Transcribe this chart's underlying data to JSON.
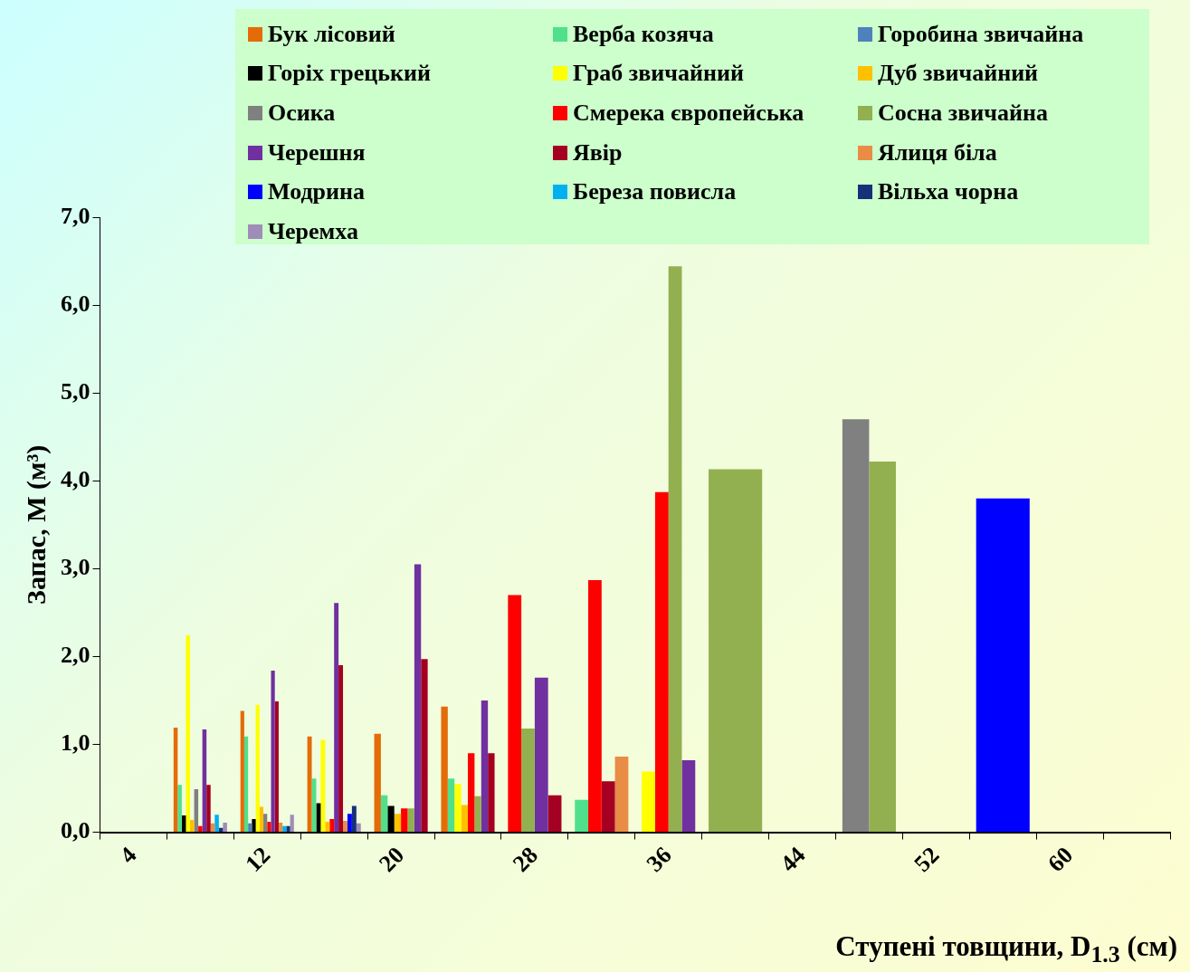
{
  "chart_data": {
    "type": "bar",
    "xlabel": "Ступені товщини, D$_{1.3}$ (см)",
    "ylabel": "Запас, М (м³)",
    "categories": [
      "4",
      null,
      "12",
      null,
      "20",
      null,
      "28",
      null,
      "36",
      null,
      "44",
      null,
      "52",
      null,
      "60",
      null
    ],
    "ylim": [
      0,
      7
    ],
    "yticks": [
      {
        "value": 0,
        "label": "0,0"
      },
      {
        "value": 1,
        "label": "1,0"
      },
      {
        "value": 2,
        "label": "2,0"
      },
      {
        "value": 3,
        "label": "3,0"
      },
      {
        "value": 4,
        "label": "4,0"
      },
      {
        "value": 5,
        "label": "5,0"
      },
      {
        "value": 6,
        "label": "6,0"
      },
      {
        "value": 7,
        "label": "7,0"
      }
    ],
    "grid": false,
    "legend": "top",
    "series": [
      {
        "name": "Бук лісовий",
        "color": "#e36c09",
        "values": [
          null,
          1.19,
          1.38,
          1.09,
          1.12,
          1.43,
          null,
          null,
          null,
          null,
          null,
          null,
          null,
          null,
          null,
          null
        ]
      },
      {
        "name": "Верба козяча",
        "color": "#50e08c",
        "values": [
          null,
          0.54,
          1.09,
          0.61,
          0.42,
          0.61,
          null,
          0.37,
          null,
          null,
          null,
          null,
          null,
          null,
          null,
          null
        ]
      },
      {
        "name": "Горобина звичайна",
        "color": "#4f81bd",
        "values": [
          null,
          null,
          0.1,
          null,
          null,
          null,
          null,
          null,
          null,
          null,
          null,
          null,
          null,
          null,
          null,
          null
        ]
      },
      {
        "name": "Горіх грецький",
        "color": "#000000",
        "values": [
          null,
          0.19,
          0.15,
          0.33,
          0.3,
          null,
          null,
          null,
          null,
          null,
          null,
          null,
          null,
          null,
          null,
          null
        ]
      },
      {
        "name": "Граб звичайний",
        "color": "#ffff00",
        "values": [
          null,
          2.24,
          1.45,
          1.05,
          null,
          0.55,
          null,
          null,
          0.69,
          null,
          null,
          null,
          null,
          null,
          null,
          null
        ]
      },
      {
        "name": "Дуб звичайний",
        "color": "#ffc000",
        "values": [
          null,
          0.14,
          0.29,
          0.12,
          0.21,
          0.31,
          null,
          null,
          null,
          null,
          null,
          null,
          null,
          null,
          null,
          null
        ]
      },
      {
        "name": "Осика",
        "color": "#808080",
        "values": [
          null,
          0.49,
          0.21,
          null,
          null,
          null,
          null,
          null,
          null,
          null,
          null,
          4.7,
          null,
          null,
          null,
          null
        ]
      },
      {
        "name": "Смерека європейська",
        "color": "#ff0000",
        "values": [
          null,
          0.07,
          0.12,
          0.15,
          0.27,
          0.9,
          2.7,
          2.87,
          3.87,
          null,
          null,
          null,
          null,
          null,
          null,
          null
        ]
      },
      {
        "name": "Сосна звичайна",
        "color": "#92b050",
        "values": [
          null,
          null,
          null,
          null,
          0.27,
          0.41,
          1.18,
          null,
          6.44,
          4.13,
          null,
          4.22,
          null,
          null,
          null,
          null
        ]
      },
      {
        "name": "Черешня",
        "color": "#7030a0",
        "values": [
          null,
          1.17,
          1.84,
          2.61,
          3.05,
          1.5,
          1.76,
          null,
          0.82,
          null,
          null,
          null,
          null,
          null,
          null,
          null
        ]
      },
      {
        "name": "Явір",
        "color": "#a50021",
        "values": [
          null,
          0.54,
          1.49,
          1.9,
          1.97,
          0.9,
          0.42,
          0.58,
          null,
          null,
          null,
          null,
          null,
          null,
          null,
          null
        ]
      },
      {
        "name": "Ялиця біла",
        "color": "#e98c45",
        "values": [
          null,
          0.1,
          0.11,
          0.13,
          null,
          null,
          null,
          0.86,
          null,
          null,
          null,
          null,
          null,
          null,
          null,
          null
        ]
      },
      {
        "name": "Модрина",
        "color": "#0000ff",
        "values": [
          null,
          null,
          null,
          0.21,
          null,
          null,
          null,
          null,
          null,
          null,
          null,
          null,
          null,
          3.8,
          null,
          null
        ]
      },
      {
        "name": "Береза повисла",
        "color": "#00b0f0",
        "values": [
          null,
          0.2,
          0.07,
          null,
          null,
          null,
          null,
          null,
          null,
          null,
          null,
          null,
          null,
          null,
          null,
          null
        ]
      },
      {
        "name": "Вільха чорна",
        "color": "#17307a",
        "values": [
          null,
          0.05,
          0.07,
          0.3,
          null,
          null,
          null,
          null,
          null,
          null,
          null,
          null,
          null,
          null,
          null,
          null
        ]
      },
      {
        "name": "Черемха",
        "color": "#a08cb8",
        "values": [
          null,
          0.11,
          0.2,
          0.1,
          null,
          null,
          null,
          null,
          null,
          null,
          null,
          null,
          null,
          null,
          null,
          null
        ]
      }
    ]
  }
}
